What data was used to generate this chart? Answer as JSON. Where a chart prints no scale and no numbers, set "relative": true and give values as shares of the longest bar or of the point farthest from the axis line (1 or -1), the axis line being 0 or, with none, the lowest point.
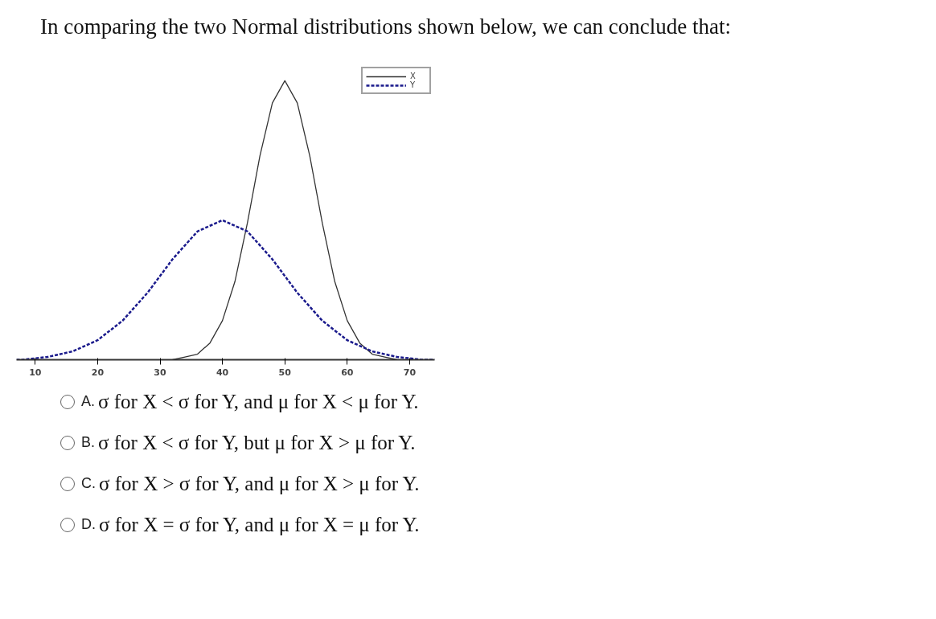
{
  "chart_data": {
    "type": "line",
    "title": "In comparing the two Normal distributions shown below, we can conclude that:",
    "relative": true,
    "xlim": [
      7,
      74
    ],
    "xticks": [
      10,
      20,
      30,
      40,
      50,
      60,
      70
    ],
    "tick_labels": "x",
    "grid": false,
    "legend": "top right",
    "marker": "none",
    "series": [
      {
        "name": "X",
        "color": "#333333",
        "line_style": "solid",
        "x": [
          32,
          34,
          36,
          38,
          40,
          42,
          44,
          46,
          48,
          50,
          52,
          54,
          56,
          58,
          60,
          62,
          64,
          66,
          68
        ],
        "values": [
          0.0,
          0.01,
          0.02,
          0.06,
          0.14,
          0.28,
          0.49,
          0.73,
          0.92,
          1.0,
          0.92,
          0.73,
          0.49,
          0.28,
          0.14,
          0.06,
          0.02,
          0.01,
          0.0
        ]
      },
      {
        "name": "Y",
        "color": "#1a1a8c",
        "line_style": "dashed",
        "x": [
          7,
          8,
          12,
          16,
          20,
          24,
          28,
          32,
          36,
          40,
          44,
          48,
          52,
          56,
          60,
          64,
          68,
          72,
          74
        ],
        "values": [
          0.0,
          0.0,
          0.01,
          0.03,
          0.07,
          0.14,
          0.24,
          0.36,
          0.46,
          0.5,
          0.46,
          0.36,
          0.24,
          0.14,
          0.07,
          0.03,
          0.01,
          0.0,
          0.0
        ]
      }
    ],
    "annotations": [
      "A. σ for X < σ for Y, and μ for X < μ for Y.",
      "B. σ for X < σ for Y, but μ for X > μ for Y.",
      "C. σ for X > σ for Y, and μ for X > μ for Y.",
      "D. σ for X = σ for Y, and μ for X = μ for Y."
    ]
  }
}
